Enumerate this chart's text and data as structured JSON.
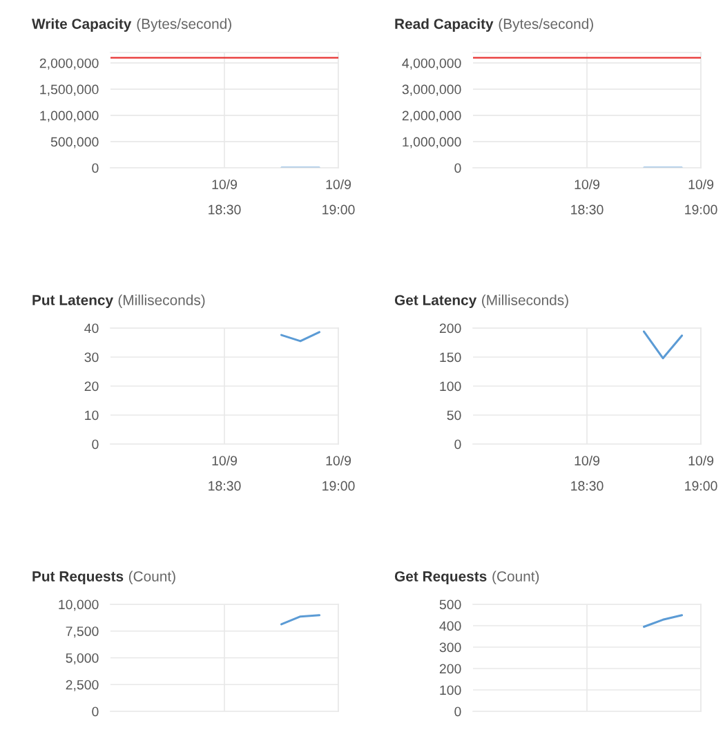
{
  "chart_data": [
    {
      "type": "line",
      "title": "Write Capacity",
      "subtitle": "(Bytes/second)",
      "categories": [
        null,
        null,
        null,
        null,
        null,
        null,
        "10/9\n18:30",
        null,
        null,
        null,
        null,
        null,
        "10/9\n19:00"
      ],
      "ylim": [
        0,
        2200000
      ],
      "yticks": [
        {
          "value": 0,
          "label": "0"
        },
        {
          "value": 500000,
          "label": "500,000"
        },
        {
          "value": 1000000,
          "label": "1,000,000"
        },
        {
          "value": 1500000,
          "label": "1,500,000"
        },
        {
          "value": 2000000,
          "label": "2,000,000"
        }
      ],
      "grid": true,
      "ref_lines": [
        {
          "axis": "y",
          "value": 2100000,
          "color": "#e8312f"
        }
      ],
      "series": [
        {
          "color": "#5b9bd5",
          "values": [
            null,
            null,
            null,
            null,
            null,
            null,
            null,
            null,
            null,
            0,
            0,
            0,
            null
          ]
        }
      ]
    },
    {
      "type": "line",
      "title": "Read Capacity",
      "subtitle": "(Bytes/second)",
      "categories": [
        null,
        null,
        null,
        null,
        null,
        null,
        "10/9\n18:30",
        null,
        null,
        null,
        null,
        null,
        "10/9\n19:00"
      ],
      "ylim": [
        0,
        4400000
      ],
      "yticks": [
        {
          "value": 0,
          "label": "0"
        },
        {
          "value": 1000000,
          "label": "1,000,000"
        },
        {
          "value": 2000000,
          "label": "2,000,000"
        },
        {
          "value": 3000000,
          "label": "3,000,000"
        },
        {
          "value": 4000000,
          "label": "4,000,000"
        }
      ],
      "grid": true,
      "ref_lines": [
        {
          "axis": "y",
          "value": 4200000,
          "color": "#e8312f"
        }
      ],
      "series": [
        {
          "color": "#5b9bd5",
          "values": [
            null,
            null,
            null,
            null,
            null,
            null,
            null,
            null,
            null,
            0,
            0,
            0,
            null
          ]
        }
      ]
    },
    {
      "type": "line",
      "title": "Put Latency",
      "subtitle": "(Milliseconds)",
      "categories": [
        null,
        null,
        null,
        null,
        null,
        null,
        "10/9\n18:30",
        null,
        null,
        null,
        null,
        null,
        "10/9\n19:00"
      ],
      "ylim": [
        0,
        40
      ],
      "yticks": [
        0,
        10,
        20,
        30,
        40
      ],
      "grid": true,
      "series": [
        {
          "color": "#5b9bd5",
          "values": [
            null,
            null,
            null,
            null,
            null,
            null,
            null,
            null,
            null,
            37.6,
            35.5,
            38.6,
            null
          ]
        }
      ]
    },
    {
      "type": "line",
      "title": "Get Latency",
      "subtitle": "(Milliseconds)",
      "categories": [
        null,
        null,
        null,
        null,
        null,
        null,
        "10/9\n18:30",
        null,
        null,
        null,
        null,
        null,
        "10/9\n19:00"
      ],
      "ylim": [
        0,
        200
      ],
      "yticks": [
        0,
        50,
        100,
        150,
        200
      ],
      "grid": true,
      "series": [
        {
          "color": "#5b9bd5",
          "values": [
            null,
            null,
            null,
            null,
            null,
            null,
            null,
            null,
            null,
            194,
            148,
            187,
            null
          ]
        }
      ]
    },
    {
      "type": "line",
      "title": "Put Requests",
      "subtitle": "(Count)",
      "categories": [
        null,
        null,
        null,
        null,
        null,
        null,
        null,
        null,
        null,
        null,
        null,
        null,
        null
      ],
      "ylim": [
        0,
        10000
      ],
      "yticks": [
        {
          "value": 0,
          "label": "0"
        },
        {
          "value": 2500,
          "label": "2,500"
        },
        {
          "value": 5000,
          "label": "5,000"
        },
        {
          "value": 7500,
          "label": "7,500"
        },
        {
          "value": 10000,
          "label": "10,000"
        }
      ],
      "grid": true,
      "tick_labels": "y",
      "series": [
        {
          "color": "#5b9bd5",
          "values": [
            null,
            null,
            null,
            null,
            null,
            null,
            null,
            null,
            null,
            8140,
            8860,
            8980,
            null
          ]
        }
      ]
    },
    {
      "type": "line",
      "title": "Get Requests",
      "subtitle": "(Count)",
      "categories": [
        null,
        null,
        null,
        null,
        null,
        null,
        null,
        null,
        null,
        null,
        null,
        null,
        null
      ],
      "ylim": [
        0,
        500
      ],
      "yticks": [
        0,
        100,
        200,
        300,
        400,
        500
      ],
      "grid": true,
      "tick_labels": "y",
      "series": [
        {
          "color": "#5b9bd5",
          "values": [
            null,
            null,
            null,
            null,
            null,
            null,
            null,
            null,
            null,
            395,
            428,
            449,
            null
          ]
        }
      ]
    }
  ]
}
